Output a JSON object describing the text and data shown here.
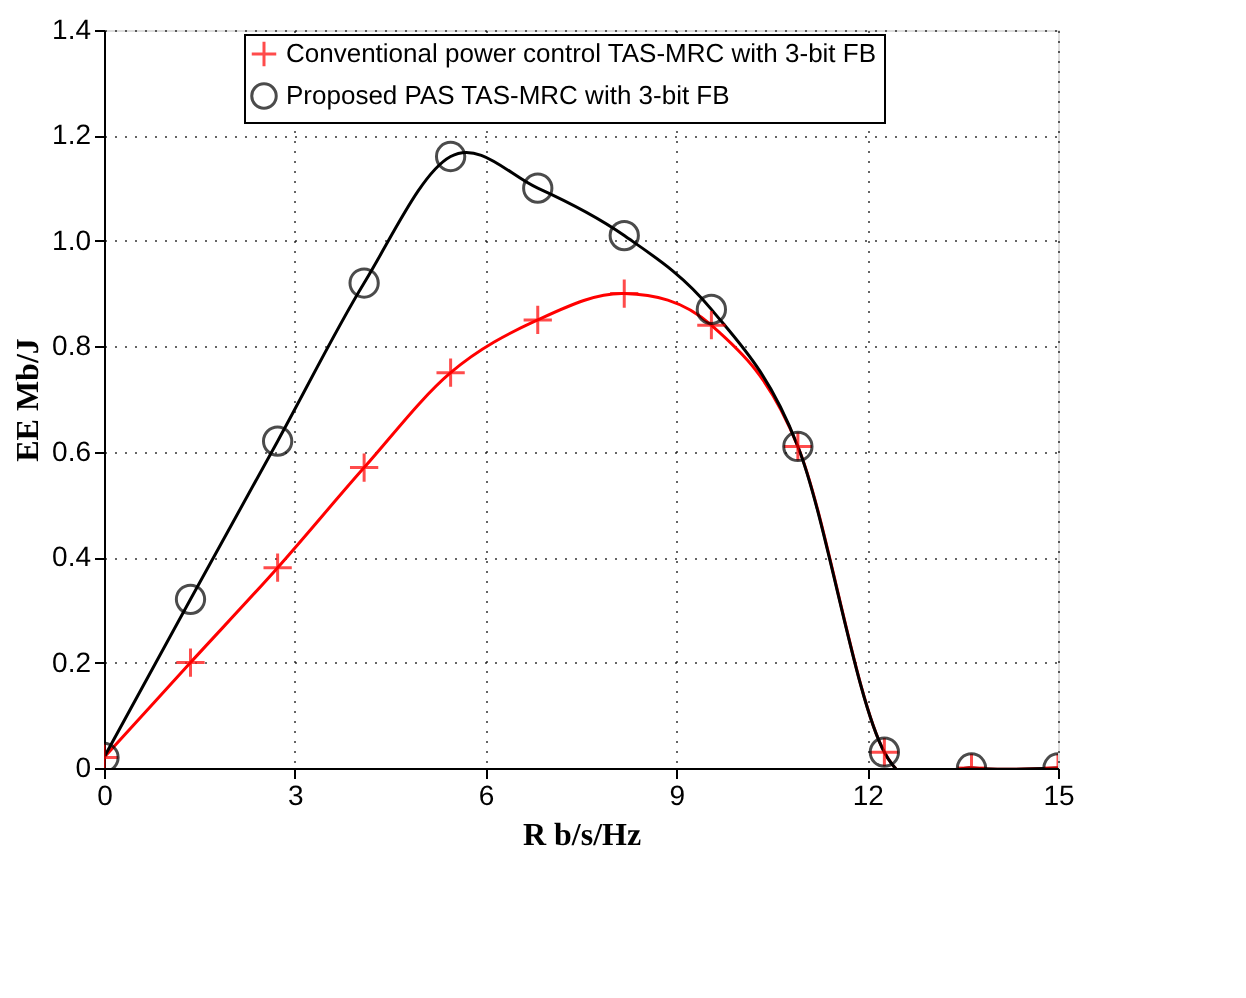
{
  "chart_data": {
    "type": "line",
    "xlabel": "R b/s/Hz",
    "ylabel": "EE Mb/J",
    "x": [
      0,
      1.36,
      2.73,
      4.09,
      5.45,
      6.82,
      8.18,
      9.55,
      10.91,
      12.27,
      13.64,
      15
    ],
    "series": [
      {
        "name": "Conventional power control TAS-MRC with 3-bit FB",
        "color": "#ff0000",
        "marker": "cross",
        "values": [
          0.02,
          0.2,
          0.38,
          0.57,
          0.75,
          0.85,
          0.9,
          0.84,
          0.61,
          0.03,
          0,
          0
        ]
      },
      {
        "name": "Proposed PAS TAS-MRC with 3-bit FB",
        "color": "#000000",
        "marker": "circle",
        "values": [
          0.02,
          0.32,
          0.62,
          0.92,
          1.16,
          1.1,
          1.01,
          0.87,
          0.61,
          0.03,
          0,
          0
        ]
      }
    ],
    "xlim": [
      0,
      15
    ],
    "xticks": [
      0,
      3,
      6,
      9,
      12,
      15
    ],
    "ylim": [
      0,
      1.4
    ],
    "yticks": [
      0,
      0.2,
      0.4,
      0.6,
      0.8,
      {
        "value": 1,
        "label": "1.0"
      },
      1.2,
      1.4
    ],
    "grid": true,
    "legend": "top",
    "line_style": "solid"
  }
}
